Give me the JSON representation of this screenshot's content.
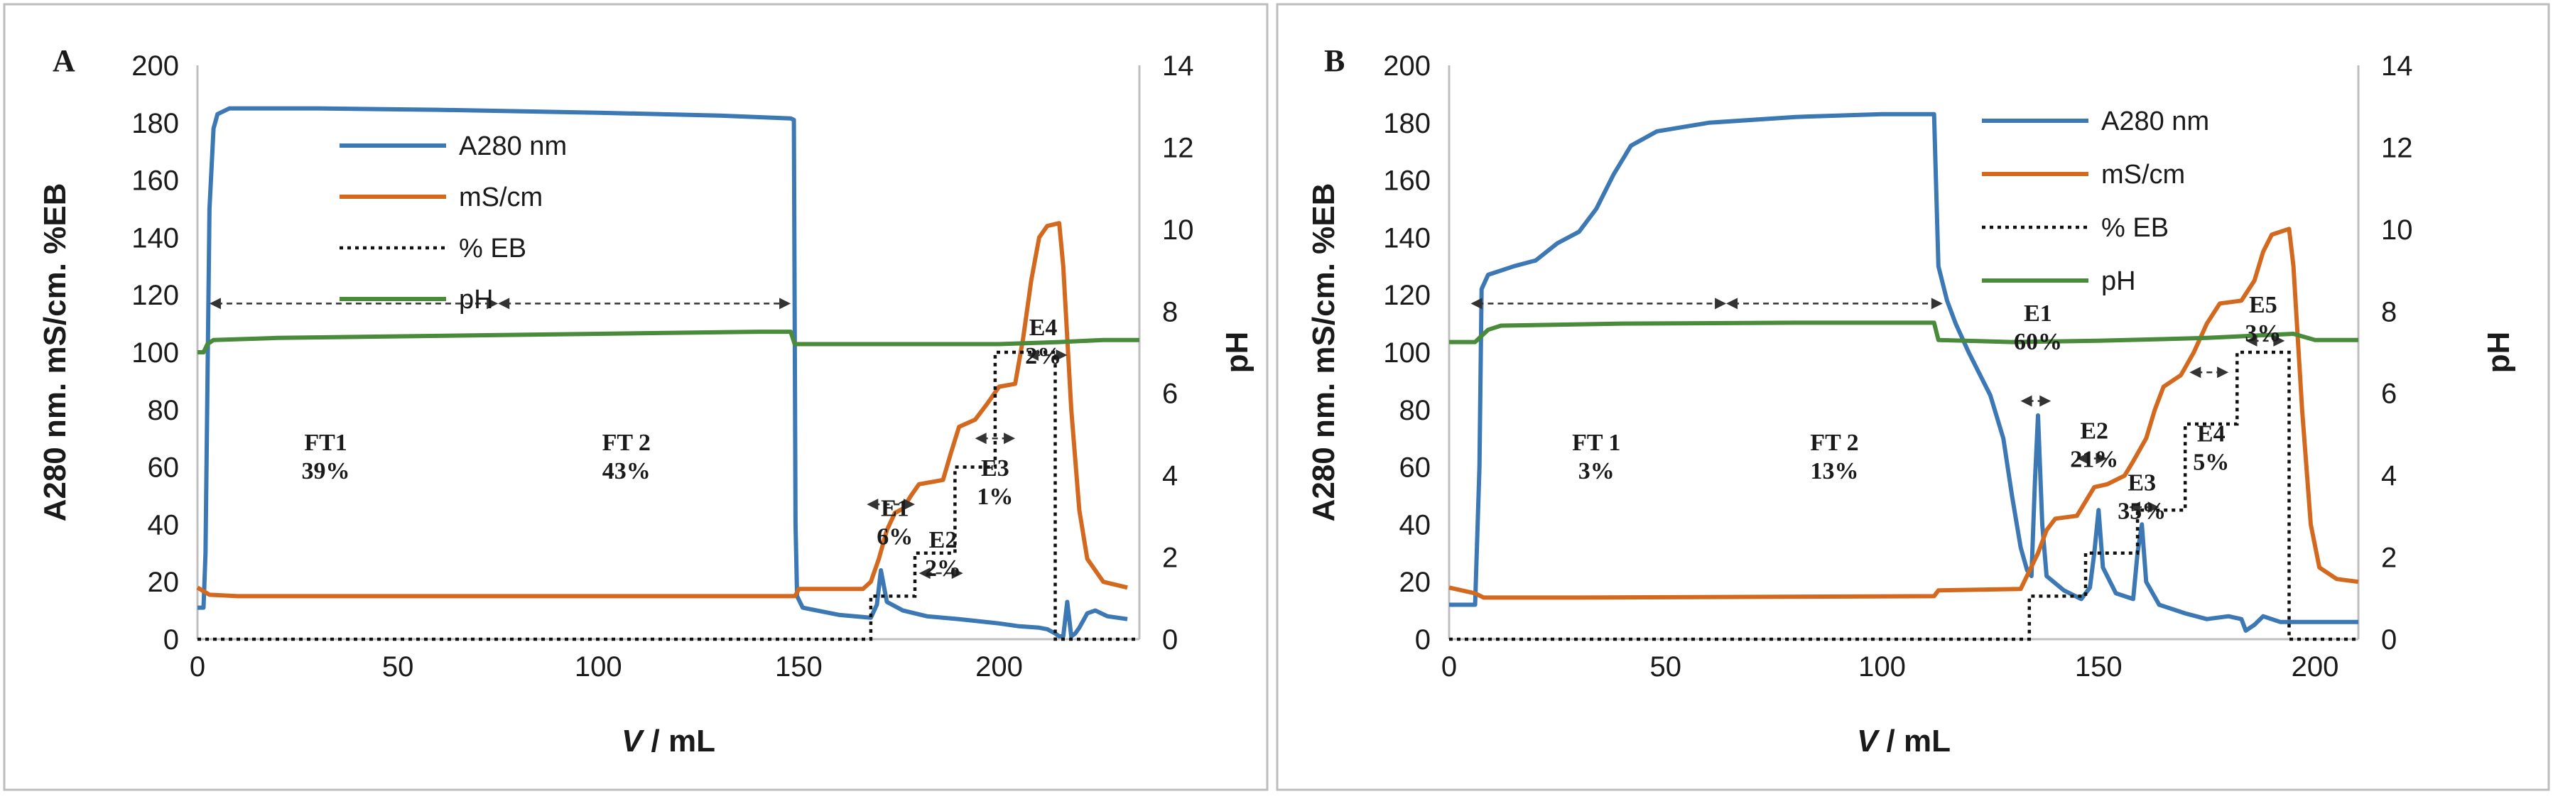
{
  "colors": {
    "a280": "#3b78b4",
    "ms": "#d2691e",
    "eb": "#111111",
    "ph": "#4a8a3b"
  },
  "chart_data": [
    {
      "type": "line",
      "panel": "A",
      "xlabel_italic": "V",
      "xlabel_rest": " / mL",
      "ylabel_left": "A280 nm. mS/cm. %EB",
      "ylabel_right": "pH",
      "xlim": [
        0,
        235
      ],
      "ylim_left": [
        0,
        200
      ],
      "ylim_right": [
        0,
        14
      ],
      "xticks": [
        0,
        50,
        100,
        150,
        200
      ],
      "yticks_left": [
        0,
        20,
        40,
        60,
        80,
        100,
        120,
        140,
        160,
        180,
        200
      ],
      "yticks_right": [
        0,
        2,
        4,
        6,
        8,
        10,
        12,
        14
      ],
      "legend": [
        "A280 nm",
        "mS/cm",
        "% EB",
        "pH"
      ],
      "legend_position": "upper-left",
      "series": [
        {
          "name": "A280 nm",
          "axis": "left",
          "points": [
            [
              0,
              11
            ],
            [
              1.5,
              11
            ],
            [
              2,
              30
            ],
            [
              3,
              150
            ],
            [
              4,
              178
            ],
            [
              5,
              183
            ],
            [
              8,
              185
            ],
            [
              30,
              185
            ],
            [
              60,
              184.5
            ],
            [
              100,
              183.5
            ],
            [
              130,
              182.5
            ],
            [
              148,
              181.5
            ],
            [
              148.8,
              181
            ],
            [
              149.2,
              40
            ],
            [
              149.6,
              15
            ],
            [
              151,
              11
            ],
            [
              160,
              8.5
            ],
            [
              168,
              7.5
            ],
            [
              169.5,
              12
            ],
            [
              170.5,
              24
            ],
            [
              172,
              13
            ],
            [
              176,
              10
            ],
            [
              182,
              8
            ],
            [
              190,
              7
            ],
            [
              200,
              5.5
            ],
            [
              205,
              4.5
            ],
            [
              210,
              4
            ],
            [
              212,
              3.5
            ],
            [
              214,
              2
            ],
            [
              215,
              1
            ],
            [
              216,
              1
            ],
            [
              217,
              13
            ],
            [
              218,
              1
            ],
            [
              219,
              2
            ],
            [
              220,
              4
            ],
            [
              222,
              9
            ],
            [
              224,
              10
            ],
            [
              227,
              8
            ],
            [
              232,
              7
            ]
          ]
        },
        {
          "name": "mS/cm",
          "axis": "left",
          "points": [
            [
              0,
              18
            ],
            [
              3,
              15.5
            ],
            [
              10,
              15
            ],
            [
              149,
              15
            ],
            [
              149.5,
              16
            ],
            [
              150,
              17.5
            ],
            [
              166,
              17.5
            ],
            [
              168,
              20
            ],
            [
              170,
              28
            ],
            [
              172,
              38
            ],
            [
              174,
              44
            ],
            [
              176,
              45.5
            ],
            [
              178,
              50
            ],
            [
              180,
              54
            ],
            [
              186,
              55.5
            ],
            [
              188,
              65
            ],
            [
              190,
              74
            ],
            [
              194,
              76.5
            ],
            [
              197,
              82
            ],
            [
              200,
              88
            ],
            [
              204,
              89
            ],
            [
              206,
              105
            ],
            [
              208,
              125
            ],
            [
              210,
              140
            ],
            [
              212,
              144
            ],
            [
              215,
              145
            ],
            [
              216,
              130
            ],
            [
              218,
              80
            ],
            [
              220,
              45
            ],
            [
              222,
              28
            ],
            [
              226,
              20
            ],
            [
              232,
              18
            ]
          ]
        },
        {
          "name": "% EB",
          "axis": "left",
          "points": [
            [
              0,
              0
            ],
            [
              167,
              0
            ],
            [
              168,
              0
            ],
            [
              168,
              15
            ],
            [
              179,
              15
            ],
            [
              179,
              30
            ],
            [
              189,
              30
            ],
            [
              189,
              60
            ],
            [
              199,
              60
            ],
            [
              199,
              100
            ],
            [
              214,
              100
            ],
            [
              214,
              0
            ],
            [
              235,
              0
            ]
          ]
        },
        {
          "name": "pH",
          "axis": "right",
          "points": [
            [
              0,
              7.0
            ],
            [
              1.5,
              7.0
            ],
            [
              2.5,
              7.2
            ],
            [
              4,
              7.3
            ],
            [
              20,
              7.35
            ],
            [
              60,
              7.4
            ],
            [
              100,
              7.45
            ],
            [
              140,
              7.5
            ],
            [
              148,
              7.5
            ],
            [
              149,
              7.2
            ],
            [
              150,
              7.2
            ],
            [
              170,
              7.2
            ],
            [
              200,
              7.2
            ],
            [
              215,
              7.25
            ],
            [
              226,
              7.3
            ],
            [
              235,
              7.3
            ]
          ]
        }
      ],
      "annotations": [
        {
          "lines": [
            "FT1",
            "39%"
          ],
          "x": 32,
          "y": 56,
          "range": [
            3,
            75
          ],
          "arrow_y": 117
        },
        {
          "lines": [
            "FT 2",
            "43%"
          ],
          "x": 107,
          "y": 56,
          "range": [
            75,
            148
          ],
          "arrow_y": 117
        },
        {
          "lines": [
            "E1",
            "6%"
          ],
          "x": 174,
          "y": 33,
          "range": [
            167,
            179
          ],
          "arrow_y": 47
        },
        {
          "lines": [
            "E2",
            "2%"
          ],
          "x": 186,
          "y": 22,
          "range": [
            180,
            191
          ],
          "arrow_y": 23
        },
        {
          "lines": [
            "E3",
            "1%"
          ],
          "x": 199,
          "y": 47,
          "range": [
            194,
            204
          ],
          "arrow_y": 70
        },
        {
          "lines": [
            "E4",
            "2%"
          ],
          "x": 211,
          "y": 96,
          "range": [
            207,
            217
          ],
          "arrow_y": 99
        }
      ]
    },
    {
      "type": "line",
      "panel": "B",
      "xlabel_italic": "V",
      "xlabel_rest": " / mL",
      "ylabel_left": "A280 nm. mS/cm. %EB",
      "ylabel_right": "pH",
      "xlim": [
        0,
        210
      ],
      "ylim_left": [
        0,
        200
      ],
      "ylim_right": [
        0,
        14
      ],
      "xticks": [
        0,
        50,
        100,
        150,
        200
      ],
      "yticks_left": [
        0,
        20,
        40,
        60,
        80,
        100,
        120,
        140,
        160,
        180,
        200
      ],
      "yticks_right": [
        0,
        2,
        4,
        6,
        8,
        10,
        12,
        14
      ],
      "legend": [
        "A280 nm",
        "mS/cm",
        "% EB",
        "pH"
      ],
      "legend_position": "upper-right",
      "series": [
        {
          "name": "A280 nm",
          "axis": "left",
          "points": [
            [
              0,
              12
            ],
            [
              6,
              12
            ],
            [
              7,
              60
            ],
            [
              7.5,
              122
            ],
            [
              9,
              127
            ],
            [
              15,
              130
            ],
            [
              20,
              132
            ],
            [
              25,
              138
            ],
            [
              30,
              142
            ],
            [
              34,
              150
            ],
            [
              38,
              162
            ],
            [
              42,
              172
            ],
            [
              48,
              177
            ],
            [
              60,
              180
            ],
            [
              80,
              182
            ],
            [
              100,
              183
            ],
            [
              112,
              183
            ],
            [
              113,
              130
            ],
            [
              115,
              118
            ],
            [
              117,
              110
            ],
            [
              120,
              100
            ],
            [
              125,
              85
            ],
            [
              128,
              70
            ],
            [
              130,
              50
            ],
            [
              132,
              32
            ],
            [
              133.5,
              24
            ],
            [
              134.5,
              22
            ],
            [
              135.3,
              55
            ],
            [
              136,
              78
            ],
            [
              137,
              40
            ],
            [
              138,
              22
            ],
            [
              142,
              17
            ],
            [
              146,
              14
            ],
            [
              148,
              18
            ],
            [
              149,
              30
            ],
            [
              150,
              45
            ],
            [
              151,
              25
            ],
            [
              154,
              16
            ],
            [
              158,
              14
            ],
            [
              159,
              30
            ],
            [
              160,
              40
            ],
            [
              161,
              20
            ],
            [
              164,
              12
            ],
            [
              170,
              9
            ],
            [
              175,
              7
            ],
            [
              180,
              8
            ],
            [
              183,
              7
            ],
            [
              184,
              3
            ],
            [
              186,
              5
            ],
            [
              188,
              8
            ],
            [
              192,
              6
            ],
            [
              200,
              6
            ],
            [
              205,
              6
            ],
            [
              210,
              6
            ]
          ]
        },
        {
          "name": "mS/cm",
          "axis": "left",
          "points": [
            [
              0,
              18
            ],
            [
              6,
              16
            ],
            [
              8,
              14.5
            ],
            [
              30,
              14.5
            ],
            [
              112,
              15
            ],
            [
              113,
              17
            ],
            [
              132,
              17.5
            ],
            [
              136,
              30
            ],
            [
              138,
              38
            ],
            [
              140,
              42
            ],
            [
              145,
              43
            ],
            [
              147,
              48
            ],
            [
              149,
              53
            ],
            [
              152,
              54
            ],
            [
              156,
              57
            ],
            [
              158,
              62
            ],
            [
              161,
              70
            ],
            [
              163,
              80
            ],
            [
              165,
              88
            ],
            [
              167,
              90
            ],
            [
              169,
              92
            ],
            [
              172,
              100
            ],
            [
              175,
              110
            ],
            [
              178,
              117
            ],
            [
              183,
              118
            ],
            [
              186,
              125
            ],
            [
              188,
              135
            ],
            [
              190,
              141
            ],
            [
              194,
              143
            ],
            [
              195,
              130
            ],
            [
              197,
              80
            ],
            [
              199,
              40
            ],
            [
              201,
              25
            ],
            [
              205,
              21
            ],
            [
              210,
              20
            ]
          ]
        },
        {
          "name": "% EB",
          "axis": "left",
          "points": [
            [
              0,
              0
            ],
            [
              134,
              0
            ],
            [
              134,
              15
            ],
            [
              147,
              15
            ],
            [
              147,
              30
            ],
            [
              159,
              30
            ],
            [
              159,
              45
            ],
            [
              170,
              45
            ],
            [
              170,
              75
            ],
            [
              182,
              75
            ],
            [
              182,
              100
            ],
            [
              194,
              100
            ],
            [
              194,
              0
            ],
            [
              210,
              0
            ]
          ]
        },
        {
          "name": "pH",
          "axis": "right",
          "points": [
            [
              0,
              7.25
            ],
            [
              6,
              7.25
            ],
            [
              9,
              7.55
            ],
            [
              12,
              7.65
            ],
            [
              40,
              7.7
            ],
            [
              80,
              7.72
            ],
            [
              112,
              7.72
            ],
            [
              113,
              7.3
            ],
            [
              130,
              7.25
            ],
            [
              150,
              7.28
            ],
            [
              175,
              7.35
            ],
            [
              195,
              7.45
            ],
            [
              200,
              7.3
            ],
            [
              210,
              7.3
            ]
          ]
        }
      ],
      "annotations": [
        {
          "lines": [
            "FT 1",
            "3%"
          ],
          "x": 34,
          "y": 56,
          "range": [
            5,
            64
          ],
          "arrow_y": 117
        },
        {
          "lines": [
            "FT 2",
            "13%"
          ],
          "x": 89,
          "y": 56,
          "range": [
            64,
            114
          ],
          "arrow_y": 117
        },
        {
          "lines": [
            "E1",
            "60%"
          ],
          "x": 136,
          "y": 101,
          "range": [
            132,
            139
          ],
          "arrow_y": 83
        },
        {
          "lines": [
            "E2",
            "21%"
          ],
          "x": 149,
          "y": 60,
          "range": [
            145,
            152
          ],
          "arrow_y": 63
        },
        {
          "lines": [
            "E3",
            "35%"
          ],
          "x": 160,
          "y": 42,
          "range": [
            157,
            164
          ],
          "arrow_y": 46
        },
        {
          "lines": [
            "E4",
            "5%"
          ],
          "x": 176,
          "y": 59,
          "range": [
            171,
            180
          ],
          "arrow_y": 93
        },
        {
          "lines": [
            "E5",
            "3%"
          ],
          "x": 188,
          "y": 104,
          "range": [
            184,
            193
          ],
          "arrow_y": 104
        }
      ]
    }
  ]
}
